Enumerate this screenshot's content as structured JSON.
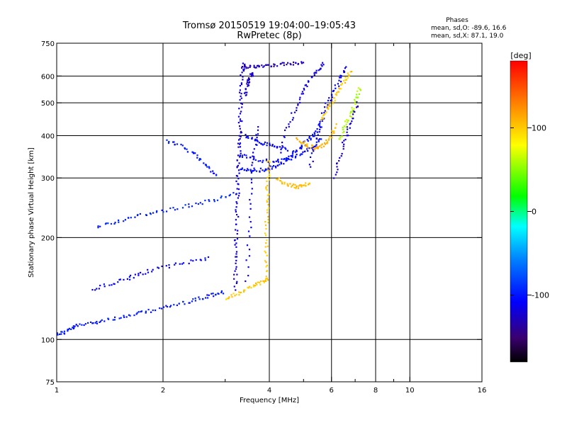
{
  "chart_data": {
    "type": "scatter",
    "title": "Tromsø 20150519 19:04:00–19:05:43",
    "subtitle": "RwPretec (8p)",
    "xlabel": "Frequency [MHz]",
    "ylabel": "Stationary phase Virtual Height [km]",
    "x_scale": "log",
    "y_scale": "log",
    "xlim": [
      1,
      16
    ],
    "ylim": [
      75,
      750
    ],
    "x_ticks": [
      1,
      2,
      4,
      6,
      8,
      10,
      16
    ],
    "x_tick_labels": [
      "1",
      "2",
      "4",
      "6",
      "8",
      "10",
      "16"
    ],
    "x_minor_ticks": [
      3,
      5,
      7,
      9
    ],
    "y_ticks": [
      75,
      100,
      200,
      300,
      400,
      500,
      600,
      750
    ],
    "y_tick_labels": [
      "75",
      "100",
      "200",
      "300",
      "400",
      "500",
      "600",
      "750"
    ],
    "grid": true,
    "stats": {
      "heading": "Phases",
      "line_o": "mean, sd,O: -89.6, 16.6",
      "line_x": "mean, sd,X:  87.1, 19.0"
    },
    "colorbar": {
      "unit": "[deg]",
      "range": [
        -180,
        180
      ],
      "tick_values": [
        100,
        0,
        -100
      ],
      "tick_labels": [
        "100",
        "0",
        "-100"
      ]
    },
    "traces": [
      {
        "phase": -100,
        "points": [
          [
            1.0,
            104
          ],
          [
            1.05,
            105
          ],
          [
            1.1,
            108
          ],
          [
            1.15,
            110
          ],
          [
            1.25,
            112
          ],
          [
            1.35,
            114
          ],
          [
            1.5,
            116
          ],
          [
            1.65,
            118
          ],
          [
            1.8,
            121
          ],
          [
            2.0,
            124
          ],
          [
            2.2,
            127
          ],
          [
            2.4,
            130
          ],
          [
            2.6,
            133
          ],
          [
            2.8,
            136
          ],
          [
            2.95,
            138
          ]
        ]
      },
      {
        "phase": -110,
        "points": [
          [
            1.25,
            140
          ],
          [
            1.4,
            145
          ],
          [
            1.55,
            150
          ],
          [
            1.7,
            155
          ],
          [
            1.85,
            160
          ],
          [
            2.1,
            165
          ],
          [
            2.4,
            170
          ],
          [
            2.7,
            175
          ]
        ]
      },
      {
        "phase": -95,
        "points": [
          [
            1.3,
            215
          ],
          [
            1.45,
            222
          ],
          [
            1.6,
            228
          ],
          [
            1.8,
            235
          ],
          [
            2.0,
            240
          ],
          [
            2.3,
            247
          ],
          [
            2.6,
            254
          ],
          [
            2.9,
            262
          ],
          [
            3.2,
            272
          ]
        ]
      },
      {
        "phase": -100,
        "points": [
          [
            2.05,
            385
          ],
          [
            2.2,
            375
          ],
          [
            2.4,
            360
          ],
          [
            2.55,
            340
          ],
          [
            2.7,
            320
          ],
          [
            2.85,
            305
          ]
        ]
      },
      {
        "phase": -120,
        "points": [
          [
            3.2,
            140
          ],
          [
            3.21,
            160
          ],
          [
            3.22,
            180
          ],
          [
            3.23,
            200
          ],
          [
            3.24,
            230
          ],
          [
            3.25,
            260
          ],
          [
            3.26,
            290
          ],
          [
            3.27,
            320
          ],
          [
            3.28,
            350
          ],
          [
            3.29,
            380
          ],
          [
            3.3,
            410
          ],
          [
            3.31,
            450
          ],
          [
            3.32,
            500
          ],
          [
            3.33,
            560
          ],
          [
            3.35,
            620
          ],
          [
            3.4,
            650
          ]
        ]
      },
      {
        "phase": -130,
        "points": [
          [
            3.35,
            640
          ],
          [
            3.5,
            640
          ],
          [
            3.7,
            642
          ],
          [
            3.9,
            645
          ],
          [
            4.1,
            648
          ],
          [
            4.4,
            650
          ],
          [
            4.7,
            652
          ],
          [
            5.0,
            655
          ]
        ]
      },
      {
        "phase": -125,
        "points": [
          [
            3.4,
            520
          ],
          [
            3.45,
            560
          ],
          [
            3.5,
            580
          ],
          [
            3.55,
            600
          ],
          [
            3.6,
            610
          ]
        ]
      },
      {
        "phase": -115,
        "points": [
          [
            3.45,
            150
          ],
          [
            3.5,
            200
          ],
          [
            3.55,
            260
          ],
          [
            3.6,
            330
          ],
          [
            3.65,
            380
          ],
          [
            3.7,
            420
          ]
        ]
      },
      {
        "phase": -105,
        "points": [
          [
            3.3,
            320
          ],
          [
            3.5,
            318
          ],
          [
            3.7,
            316
          ],
          [
            3.9,
            318
          ],
          [
            4.1,
            322
          ],
          [
            4.3,
            330
          ],
          [
            4.5,
            340
          ],
          [
            4.7,
            355
          ],
          [
            4.9,
            370
          ],
          [
            5.1,
            385
          ],
          [
            5.3,
            400
          ],
          [
            5.5,
            420
          ],
          [
            5.7,
            450
          ]
        ]
      },
      {
        "phase": -105,
        "points": [
          [
            3.3,
            350
          ],
          [
            3.5,
            345
          ],
          [
            3.8,
            338
          ],
          [
            4.1,
            336
          ],
          [
            4.4,
            338
          ],
          [
            4.7,
            345
          ],
          [
            5.0,
            355
          ],
          [
            5.3,
            370
          ],
          [
            5.6,
            395
          ]
        ]
      },
      {
        "phase": -110,
        "points": [
          [
            3.4,
            400
          ],
          [
            3.6,
            390
          ],
          [
            3.8,
            380
          ],
          [
            4.0,
            375
          ],
          [
            4.2,
            370
          ],
          [
            4.5,
            365
          ]
        ]
      },
      {
        "phase": -120,
        "points": [
          [
            4.3,
            360
          ],
          [
            4.5,
            420
          ],
          [
            4.7,
            470
          ],
          [
            4.9,
            520
          ],
          [
            5.1,
            560
          ],
          [
            5.3,
            600
          ],
          [
            5.5,
            630
          ],
          [
            5.7,
            650
          ]
        ]
      },
      {
        "phase": -115,
        "points": [
          [
            5.2,
            320
          ],
          [
            5.4,
            380
          ],
          [
            5.6,
            440
          ],
          [
            5.8,
            490
          ],
          [
            6.0,
            520
          ],
          [
            6.2,
            560
          ],
          [
            6.4,
            600
          ],
          [
            6.6,
            640
          ]
        ]
      },
      {
        "phase": -125,
        "points": [
          [
            6.1,
            300
          ],
          [
            6.3,
            340
          ],
          [
            6.5,
            380
          ],
          [
            6.7,
            420
          ],
          [
            6.9,
            460
          ],
          [
            7.1,
            500
          ]
        ]
      },
      {
        "phase": 100,
        "points": [
          [
            3.05,
            133
          ],
          [
            3.2,
            136
          ],
          [
            3.4,
            140
          ],
          [
            3.6,
            144
          ],
          [
            3.8,
            148
          ],
          [
            3.95,
            150
          ]
        ]
      },
      {
        "phase": 100,
        "points": [
          [
            3.9,
            150
          ],
          [
            3.91,
            170
          ],
          [
            3.92,
            190
          ],
          [
            3.93,
            220
          ],
          [
            3.94,
            250
          ],
          [
            3.95,
            280
          ],
          [
            3.96,
            310
          ],
          [
            3.98,
            340
          ]
        ]
      },
      {
        "phase": 105,
        "points": [
          [
            4.2,
            300
          ],
          [
            4.4,
            290
          ],
          [
            4.6,
            285
          ],
          [
            4.8,
            282
          ],
          [
            5.0,
            285
          ],
          [
            5.2,
            290
          ]
        ]
      },
      {
        "phase": 110,
        "points": [
          [
            4.8,
            390
          ],
          [
            5.0,
            380
          ],
          [
            5.2,
            372
          ],
          [
            5.4,
            368
          ],
          [
            5.6,
            372
          ],
          [
            5.8,
            382
          ],
          [
            6.0,
            400
          ],
          [
            6.2,
            430
          ]
        ]
      },
      {
        "phase": 100,
        "points": [
          [
            5.6,
            440
          ],
          [
            5.8,
            470
          ],
          [
            6.0,
            500
          ],
          [
            6.2,
            530
          ],
          [
            6.4,
            560
          ],
          [
            6.6,
            590
          ],
          [
            6.8,
            620
          ]
        ]
      },
      {
        "phase": 60,
        "points": [
          [
            6.3,
            390
          ],
          [
            6.5,
            420
          ],
          [
            6.7,
            450
          ],
          [
            6.9,
            480
          ],
          [
            7.1,
            520
          ],
          [
            7.2,
            550
          ]
        ]
      }
    ]
  }
}
